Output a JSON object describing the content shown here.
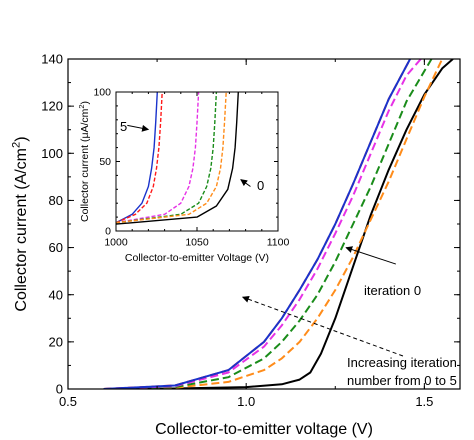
{
  "chart_data": [
    {
      "id": "main",
      "type": "line",
      "xlabel": "Collector-to-emitter voltage (V)",
      "ylabel": "Collector current (A/cm",
      "ylabel_sup": "2",
      "ylabel_tail": ")",
      "xlim": [
        0.5,
        1.6
      ],
      "ylim": [
        0,
        140
      ],
      "xticks": [
        0.5,
        1.0,
        1.5
      ],
      "xticklabels": [
        "0.5",
        "1.0",
        "1.5"
      ],
      "yticks": [
        0,
        20,
        40,
        60,
        80,
        100,
        120,
        140
      ],
      "yticklabels": [
        "0",
        "20",
        "40",
        "60",
        "80",
        "100",
        "120",
        "140"
      ],
      "grid": false,
      "series": [
        {
          "name": "iteration 0",
          "color": "#000000",
          "dash": "solid",
          "x": [
            0.6,
            0.8,
            1.0,
            1.1,
            1.15,
            1.18,
            1.21,
            1.25,
            1.3,
            1.35,
            1.4,
            1.45,
            1.5,
            1.55,
            1.58
          ],
          "y": [
            0,
            0.2,
            0.8,
            2.0,
            4.0,
            7,
            15,
            30,
            52,
            74,
            93,
            110,
            125,
            136,
            140
          ]
        },
        {
          "name": "",
          "color": "#ff8c1a",
          "dash": "dashed",
          "x": [
            0.6,
            0.8,
            0.95,
            1.05,
            1.1,
            1.15,
            1.2,
            1.25,
            1.3,
            1.35,
            1.4,
            1.45,
            1.5,
            1.55
          ],
          "y": [
            0,
            0.5,
            3,
            8,
            13,
            20,
            30,
            42,
            56,
            72,
            88,
            106,
            124,
            140
          ]
        },
        {
          "name": "",
          "color": "#1a8c1a",
          "dash": "dashed",
          "x": [
            0.6,
            0.8,
            0.95,
            1.05,
            1.1,
            1.15,
            1.2,
            1.25,
            1.3,
            1.35,
            1.4,
            1.45,
            1.52
          ],
          "y": [
            0,
            0.8,
            5,
            13,
            20,
            29,
            40,
            54,
            70,
            86,
            104,
            122,
            140
          ]
        },
        {
          "name": "",
          "color": "#e632e6",
          "dash": "dashed",
          "x": [
            0.6,
            0.8,
            0.95,
            1.05,
            1.1,
            1.15,
            1.2,
            1.25,
            1.3,
            1.35,
            1.4,
            1.45,
            1.49
          ],
          "y": [
            0,
            1.2,
            7,
            18,
            27,
            38,
            51,
            66,
            82,
            100,
            118,
            133,
            140
          ]
        },
        {
          "name": "",
          "color": "#ff1a1a",
          "dash": "dashed",
          "x": [
            0.6,
            0.8,
            0.95,
            1.05,
            1.1,
            1.15,
            1.2,
            1.25,
            1.3,
            1.35,
            1.4,
            1.46
          ],
          "y": [
            0,
            1.5,
            8,
            20,
            30,
            42,
            55,
            70,
            87,
            105,
            123,
            140
          ]
        },
        {
          "name": "",
          "color": "#1a33cc",
          "dash": "solid",
          "x": [
            0.6,
            0.8,
            0.95,
            1.05,
            1.1,
            1.15,
            1.2,
            1.25,
            1.3,
            1.35,
            1.4,
            1.46
          ],
          "y": [
            0,
            1.5,
            8,
            20,
            30,
            42,
            55,
            70,
            87,
            105,
            123,
            140
          ]
        }
      ],
      "annotations": [
        {
          "text": "iteration 0",
          "arrow_from": [
            1.42,
            53
          ],
          "arrow_to": [
            1.28,
            60
          ]
        },
        {
          "text_lines": [
            "Increasing iteration",
            "number from 0 to 5"
          ],
          "arrow_from": [
            1.44,
            14
          ],
          "arrow_to": [
            0.99,
            39
          ]
        }
      ]
    },
    {
      "id": "inset",
      "type": "line",
      "xlabel": "Collector-to-emitter Voltage (V)",
      "ylabel": "Collector current (μA/cm",
      "ylabel_sup": "2",
      "ylabel_tail": ")",
      "xlim": [
        1000,
        1100
      ],
      "ylim": [
        0,
        100
      ],
      "xticks": [
        1000,
        1050,
        1100
      ],
      "xticklabels": [
        "1000",
        "1050",
        "1100"
      ],
      "yticks": [
        0,
        50,
        100
      ],
      "yticklabels": [
        "0",
        "50",
        "100"
      ],
      "grid": false,
      "series": [
        {
          "name": "",
          "color": "#1a33cc",
          "dash": "solid",
          "x": [
            1000,
            1010,
            1016,
            1020,
            1022,
            1023.5,
            1024.5,
            1025.5
          ],
          "y": [
            6,
            12,
            20,
            32,
            45,
            60,
            78,
            100
          ]
        },
        {
          "name": "",
          "color": "#ff1a1a",
          "dash": "dashed",
          "x": [
            1000,
            1012,
            1019,
            1023,
            1025,
            1026.5,
            1027.5,
            1028.5
          ],
          "y": [
            6,
            12,
            20,
            32,
            45,
            60,
            78,
            100
          ]
        },
        {
          "name": "",
          "color": "#e632e6",
          "dash": "dashed",
          "x": [
            1000,
            1030,
            1040,
            1045,
            1047.5,
            1049,
            1050,
            1051
          ],
          "y": [
            6,
            12,
            20,
            32,
            45,
            60,
            78,
            100
          ]
        },
        {
          "name": "",
          "color": "#1a8c1a",
          "dash": "dashed",
          "x": [
            1000,
            1040,
            1051,
            1056,
            1058.5,
            1060,
            1061,
            1062
          ],
          "y": [
            6,
            12,
            20,
            32,
            45,
            60,
            78,
            100
          ]
        },
        {
          "name": "",
          "color": "#ff8c1a",
          "dash": "dashed",
          "x": [
            1000,
            1045,
            1056,
            1062,
            1064.5,
            1066,
            1067,
            1068
          ],
          "y": [
            6,
            12,
            20,
            32,
            45,
            60,
            78,
            100
          ]
        },
        {
          "name": "",
          "color": "#000000",
          "dash": "solid",
          "x": [
            1000,
            1050,
            1062,
            1069,
            1072,
            1073.5,
            1074.5,
            1075.5
          ],
          "y": [
            5,
            10,
            18,
            30,
            45,
            60,
            78,
            100
          ]
        }
      ],
      "annotations": [
        {
          "text": "5",
          "arrow_from": [
            1007,
            76
          ],
          "arrow_to": [
            1020,
            73
          ]
        },
        {
          "text": "0",
          "arrow_from": [
            1083,
            32
          ],
          "arrow_to": [
            1077,
            37
          ]
        }
      ]
    }
  ]
}
